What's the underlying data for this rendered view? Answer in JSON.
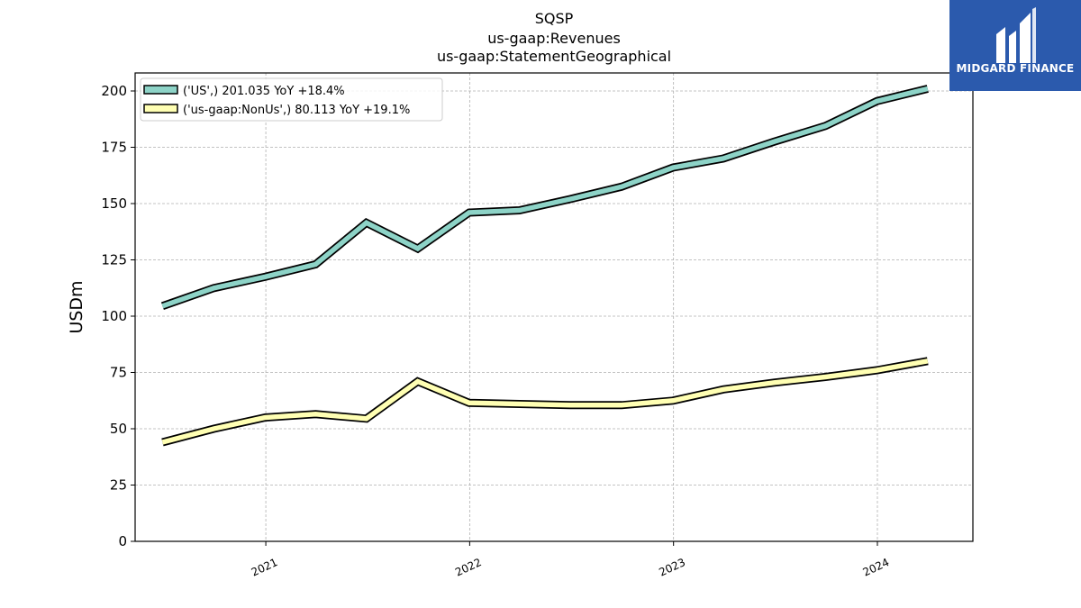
{
  "chart_data": {
    "type": "line",
    "title_lines": [
      "SQSP",
      "us-gaap:Revenues",
      "us-gaap:StatementGeographical"
    ],
    "ylabel": "USDm",
    "xlabel": "",
    "ylim": [
      0,
      208
    ],
    "xlim": [
      "2020-05-12",
      "2024-06-20"
    ],
    "yticks": [
      0,
      25,
      50,
      75,
      100,
      125,
      150,
      175,
      200
    ],
    "xticks": [
      "2021",
      "2022",
      "2023",
      "2024"
    ],
    "grid": true,
    "legend_position": "top-left",
    "series": [
      {
        "name": "('US',) 201.035 YoY +18.4%",
        "color": "#8dd3c7",
        "x": [
          "2020-06-30",
          "2020-09-30",
          "2020-12-31",
          "2021-03-31",
          "2021-06-30",
          "2021-09-30",
          "2021-12-31",
          "2022-03-31",
          "2022-06-30",
          "2022-09-30",
          "2022-12-31",
          "2023-03-31",
          "2023-06-30",
          "2023-09-30",
          "2023-12-31",
          "2024-03-31"
        ],
        "values": [
          104.5,
          112.5,
          117.5,
          123.0,
          141.5,
          130.0,
          146.0,
          147.0,
          152.0,
          157.5,
          166.0,
          170.0,
          177.5,
          184.5,
          195.5,
          201.0
        ]
      },
      {
        "name": "('us-gaap:NonUs',) 80.113 YoY +19.1%",
        "color": "#ffffb3",
        "x": [
          "2020-06-30",
          "2020-09-30",
          "2020-12-31",
          "2021-03-31",
          "2021-06-30",
          "2021-09-30",
          "2021-12-31",
          "2022-03-31",
          "2022-06-30",
          "2022-09-30",
          "2022-12-31",
          "2023-03-31",
          "2023-06-30",
          "2023-09-30",
          "2023-12-31",
          "2024-03-31"
        ],
        "values": [
          44.0,
          50.0,
          55.0,
          56.5,
          54.5,
          71.0,
          61.5,
          61.0,
          60.5,
          60.5,
          62.5,
          67.5,
          70.5,
          73.0,
          76.0,
          80.1
        ]
      }
    ]
  },
  "logo": {
    "text": "MIDGARD FINANCE",
    "background": "#2b5aad"
  }
}
